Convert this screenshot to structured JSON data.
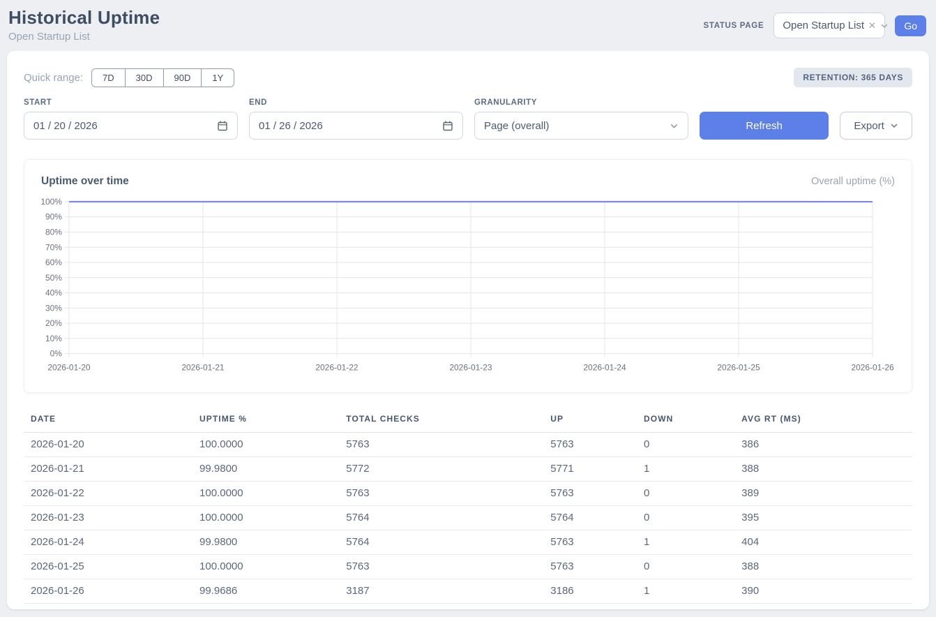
{
  "header": {
    "title": "Historical Uptime",
    "subtitle": "Open Startup List",
    "status_page_label": "STATUS PAGE",
    "status_page_value": "Open Startup List",
    "go_label": "Go"
  },
  "controls": {
    "quick_range_label": "Quick range:",
    "quick_ranges": [
      "7D",
      "30D",
      "90D",
      "1Y"
    ],
    "retention_badge": "RETENTION: 365 DAYS",
    "start_label": "START",
    "start_value": "01 / 20 / 2026",
    "end_label": "END",
    "end_value": "01 / 26 / 2026",
    "granularity_label": "GRANULARITY",
    "granularity_value": "Page (overall)",
    "refresh_label": "Refresh",
    "export_label": "Export"
  },
  "chart": {
    "title": "Uptime over time",
    "legend": "Overall uptime (%)"
  },
  "chart_data": {
    "type": "line",
    "title": "Uptime over time",
    "x": [
      "2026-01-20",
      "2026-01-21",
      "2026-01-22",
      "2026-01-23",
      "2026-01-24",
      "2026-01-25",
      "2026-01-26"
    ],
    "series": [
      {
        "name": "Overall uptime (%)",
        "values": [
          100.0,
          99.98,
          100.0,
          100.0,
          99.98,
          100.0,
          99.9686
        ]
      }
    ],
    "ylim": [
      0,
      100
    ],
    "ytick_step": 10,
    "ytick_suffix": "%",
    "grid": true,
    "legend_position": "top-right",
    "line_color": "#7f86e8",
    "grid_color": "#e2e5ea",
    "tick_color": "#6b7280"
  },
  "table": {
    "columns": [
      "DATE",
      "UPTIME %",
      "TOTAL CHECKS",
      "UP",
      "DOWN",
      "AVG RT (MS)"
    ],
    "rows": [
      [
        "2026-01-20",
        "100.0000",
        "5763",
        "5763",
        "0",
        "386"
      ],
      [
        "2026-01-21",
        "99.9800",
        "5772",
        "5771",
        "1",
        "388"
      ],
      [
        "2026-01-22",
        "100.0000",
        "5763",
        "5763",
        "0",
        "389"
      ],
      [
        "2026-01-23",
        "100.0000",
        "5764",
        "5764",
        "0",
        "395"
      ],
      [
        "2026-01-24",
        "99.9800",
        "5764",
        "5763",
        "1",
        "404"
      ],
      [
        "2026-01-25",
        "100.0000",
        "5763",
        "5763",
        "0",
        "388"
      ],
      [
        "2026-01-26",
        "99.9686",
        "3187",
        "3186",
        "1",
        "390"
      ]
    ]
  },
  "colors": {
    "accent": "#5c7fe8",
    "chart_line": "#7f86e8",
    "page_bg": "#edeff3",
    "badge_bg": "#e3e7ee"
  }
}
